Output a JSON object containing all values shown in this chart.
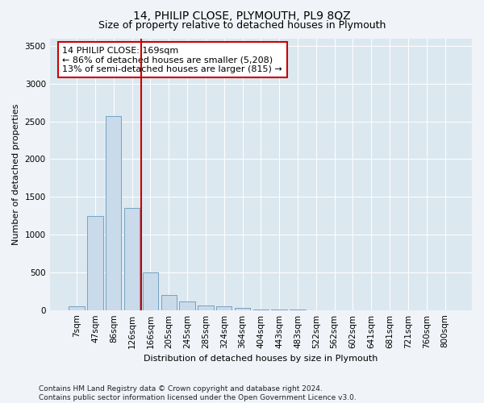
{
  "title": "14, PHILIP CLOSE, PLYMOUTH, PL9 8QZ",
  "subtitle": "Size of property relative to detached houses in Plymouth",
  "xlabel": "Distribution of detached houses by size in Plymouth",
  "ylabel": "Number of detached properties",
  "categories": [
    "7sqm",
    "47sqm",
    "86sqm",
    "126sqm",
    "166sqm",
    "205sqm",
    "245sqm",
    "285sqm",
    "324sqm",
    "364sqm",
    "404sqm",
    "443sqm",
    "483sqm",
    "522sqm",
    "562sqm",
    "602sqm",
    "641sqm",
    "681sqm",
    "721sqm",
    "760sqm",
    "800sqm"
  ],
  "values": [
    50,
    1250,
    2570,
    1350,
    500,
    200,
    110,
    60,
    50,
    25,
    10,
    5,
    2,
    1,
    0,
    0,
    0,
    0,
    0,
    0,
    0
  ],
  "bar_color": "#c9daea",
  "bar_edge_color": "#6699bb",
  "vline_color": "#cc0000",
  "annotation_box_color": "#cc0000",
  "ylim": [
    0,
    3600
  ],
  "yticks": [
    0,
    500,
    1000,
    1500,
    2000,
    2500,
    3000,
    3500
  ],
  "plot_bg_color": "#dce8f0",
  "fig_bg_color": "#f0f4f8",
  "annotation_line1": "14 PHILIP CLOSE: 169sqm",
  "annotation_line2": "← 86% of detached houses are smaller (5,208)",
  "annotation_line3": "13% of semi-detached houses are larger (815) →",
  "footer_text": "Contains HM Land Registry data © Crown copyright and database right 2024.\nContains public sector information licensed under the Open Government Licence v3.0.",
  "title_fontsize": 10,
  "subtitle_fontsize": 9,
  "axis_label_fontsize": 8,
  "tick_fontsize": 7.5,
  "annotation_fontsize": 8,
  "footer_fontsize": 6.5,
  "vline_index": 3.5
}
